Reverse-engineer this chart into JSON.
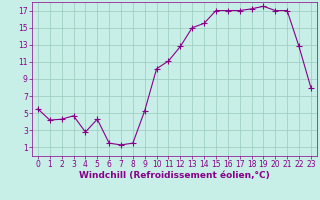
{
  "x": [
    0,
    1,
    2,
    3,
    4,
    5,
    6,
    7,
    8,
    9,
    10,
    11,
    12,
    13,
    14,
    15,
    16,
    17,
    18,
    19,
    20,
    21,
    22,
    23
  ],
  "y": [
    5.5,
    4.2,
    4.3,
    4.7,
    2.8,
    4.3,
    1.5,
    1.3,
    1.5,
    5.3,
    10.2,
    11.1,
    12.8,
    15.0,
    15.5,
    17.0,
    17.0,
    17.0,
    17.2,
    17.5,
    17.0,
    17.0,
    12.8,
    8.0
  ],
  "line_color": "#880088",
  "marker": "+",
  "marker_size": 4,
  "marker_linewidth": 0.8,
  "bg_color": "#c8eee8",
  "grid_color": "#99ccbb",
  "xlabel": "Windchill (Refroidissement éolien,°C)",
  "xlim": [
    -0.5,
    23.5
  ],
  "ylim": [
    0,
    18
  ],
  "xticks": [
    0,
    1,
    2,
    3,
    4,
    5,
    6,
    7,
    8,
    9,
    10,
    11,
    12,
    13,
    14,
    15,
    16,
    17,
    18,
    19,
    20,
    21,
    22,
    23
  ],
  "yticks": [
    1,
    3,
    5,
    7,
    9,
    11,
    13,
    15,
    17
  ],
  "tick_color": "#880088",
  "tick_fontsize": 5.5,
  "xlabel_fontsize": 6.5,
  "label_color": "#880088",
  "linewidth": 0.8
}
